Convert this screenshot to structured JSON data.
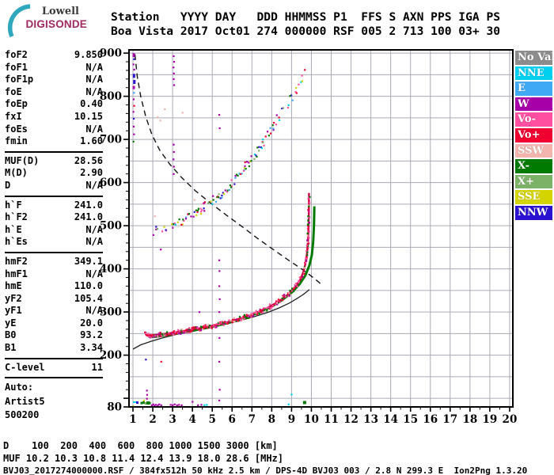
{
  "logo": {
    "line1": "Lowell",
    "line2": "DIGISONDE",
    "arc_color": "#2FA7BC",
    "brand_color": "#A02963"
  },
  "header": {
    "line1": "Station   YYYY DAY   DDD HHMMSS P1  FFS S AXN PPS IGA PS",
    "line2": "Boa Vista 2017 Oct01 274 000000 RSF 005 2 713 100 03+ 30"
  },
  "params_panel": {
    "groups": [
      {
        "rows": [
          [
            "foF2",
            "9.850"
          ],
          [
            "foF1",
            "N/A"
          ],
          [
            "foF1p",
            "N/A"
          ],
          [
            "foE",
            "N/A"
          ],
          [
            "foEp",
            "0.40"
          ],
          [
            "fxI",
            "10.15"
          ],
          [
            "foEs",
            "N/A"
          ],
          [
            "fmin",
            "1.60"
          ]
        ]
      },
      {
        "rows": [
          [
            "MUF(D)",
            "28.56"
          ],
          [
            "M(D)",
            "2.90"
          ],
          [
            "D",
            "N/A"
          ]
        ]
      },
      {
        "rows": [
          [
            "h`F",
            "241.0"
          ],
          [
            "h`F2",
            "241.0"
          ],
          [
            "h`E",
            "N/A"
          ],
          [
            "h`Es",
            "N/A"
          ]
        ]
      },
      {
        "rows": [
          [
            "hmF2",
            "349.1"
          ],
          [
            "hmF1",
            "N/A"
          ],
          [
            "hmE",
            "110.0"
          ],
          [
            "yF2",
            "105.4"
          ],
          [
            "yF1",
            "N/A"
          ],
          [
            "yE",
            "20.0"
          ],
          [
            "B0",
            "93.2"
          ],
          [
            "B1",
            "3.34"
          ]
        ]
      },
      {
        "rows": [
          [
            "C-level",
            "11"
          ]
        ]
      }
    ],
    "footer_lines": [
      "Auto:",
      "Artist5",
      "500200"
    ]
  },
  "legend": {
    "items": [
      {
        "label": "No Val",
        "color": "#8C8C8C"
      },
      {
        "label": "NNE",
        "color": "#00D0F0"
      },
      {
        "label": "E",
        "color": "#3FA9F5"
      },
      {
        "label": "W",
        "color": "#A800A8"
      },
      {
        "label": "Vo-",
        "color": "#FF4FA0"
      },
      {
        "label": "Vo+",
        "color": "#EF0030"
      },
      {
        "label": "SSW",
        "color": "#F2B4AD"
      },
      {
        "label": "X-",
        "color": "#007A00"
      },
      {
        "label": "X+",
        "color": "#7CB168"
      },
      {
        "label": "SSE",
        "color": "#D4D400"
      },
      {
        "label": "NNW",
        "color": "#2A12D0"
      }
    ]
  },
  "muf_table": {
    "d_label": "D",
    "d_values": [
      "100",
      "200",
      "400",
      "600",
      "800",
      "1000",
      "1500",
      "3000"
    ],
    "d_unit": "[km]",
    "muf_label": "MUF",
    "muf_values": [
      "10.2",
      "10.3",
      "10.8",
      "11.4",
      "12.4",
      "13.9",
      "18.0",
      "28.6"
    ],
    "muf_unit": "[MHz]"
  },
  "footer": {
    "file_info": "BVJ03_2017274000000.RSF / 384fx512h 50 kHz 2.5 km / DPS-4D BVJ03 003 / 2.8 N 299.3 E  Ion2Png 1.3.20"
  },
  "chart_data": {
    "type": "scatter",
    "x_axis": {
      "unit": "MHz",
      "min": 1,
      "max": 20,
      "ticks": [
        1,
        2,
        3,
        4,
        5,
        6,
        7,
        8,
        9,
        10,
        11,
        12,
        13,
        14,
        15,
        16,
        17,
        18,
        19,
        20
      ],
      "grid_step": 1,
      "minor_tick_step": 0.5
    },
    "y_axis": {
      "unit": "km",
      "min": 80,
      "max": 900,
      "tick_labels": [
        900,
        800,
        700,
        600,
        500,
        400,
        300,
        200,
        80
      ],
      "grid_step": 50,
      "minor_tick_step": 20
    },
    "grid": true,
    "grid_color": "#AAAAB6",
    "legend_position": "right",
    "series": [
      {
        "name": "muf-transmission-curve",
        "style": "dashed-line",
        "color": "#111111",
        "points": [
          [
            1.1,
            897
          ],
          [
            1.22,
            845
          ],
          [
            1.4,
            798
          ],
          [
            1.65,
            752
          ],
          [
            1.95,
            712
          ],
          [
            2.35,
            675
          ],
          [
            2.85,
            643
          ],
          [
            3.45,
            612
          ],
          [
            4.15,
            581
          ],
          [
            4.9,
            553
          ],
          [
            5.7,
            525
          ],
          [
            6.5,
            498
          ],
          [
            7.3,
            470
          ],
          [
            8.1,
            444
          ],
          [
            8.85,
            420
          ],
          [
            9.5,
            400
          ],
          [
            10.0,
            383
          ],
          [
            10.35,
            370
          ],
          [
            10.55,
            362
          ]
        ]
      },
      {
        "name": "electron-density-profile",
        "style": "solid-line",
        "color": "#222222",
        "points": [
          [
            1.0,
            214
          ],
          [
            1.4,
            224
          ],
          [
            1.9,
            232
          ],
          [
            2.5,
            240
          ],
          [
            3.2,
            248
          ],
          [
            4.0,
            255
          ],
          [
            4.8,
            263
          ],
          [
            5.6,
            271
          ],
          [
            6.4,
            280
          ],
          [
            7.1,
            289
          ],
          [
            7.8,
            299
          ],
          [
            8.4,
            310
          ],
          [
            8.9,
            321
          ],
          [
            9.3,
            332
          ],
          [
            9.6,
            341
          ],
          [
            9.8,
            348
          ],
          [
            9.9,
            352
          ]
        ]
      },
      {
        "name": "x-mode-trace",
        "style": "thick-line",
        "color": "#007A00",
        "points": [
          [
            1.78,
            243
          ],
          [
            2.2,
            243
          ],
          [
            2.8,
            247
          ],
          [
            3.4,
            252
          ],
          [
            4.0,
            257
          ],
          [
            4.7,
            263
          ],
          [
            5.4,
            270
          ],
          [
            6.1,
            279
          ],
          [
            6.8,
            289
          ],
          [
            7.4,
            300
          ],
          [
            8.0,
            313
          ],
          [
            8.5,
            327
          ],
          [
            9.0,
            345
          ],
          [
            9.4,
            364
          ],
          [
            9.7,
            385
          ],
          [
            9.9,
            408
          ],
          [
            10.02,
            432
          ],
          [
            10.09,
            462
          ],
          [
            10.13,
            500
          ],
          [
            10.15,
            545
          ]
        ]
      },
      {
        "name": "o-mode-trace",
        "style": "thick-line",
        "color": "#CA0045",
        "points": [
          [
            1.62,
            249
          ],
          [
            1.75,
            245
          ],
          [
            2.0,
            246
          ],
          [
            2.5,
            249
          ],
          [
            3.0,
            252
          ],
          [
            3.6,
            256
          ],
          [
            4.2,
            261
          ],
          [
            4.8,
            266
          ],
          [
            5.4,
            272
          ],
          [
            6.0,
            279
          ],
          [
            6.6,
            288
          ],
          [
            7.2,
            298
          ],
          [
            7.8,
            310
          ],
          [
            8.3,
            323
          ],
          [
            8.8,
            340
          ],
          [
            9.2,
            359
          ],
          [
            9.45,
            376
          ],
          [
            9.6,
            393
          ],
          [
            9.7,
            412
          ],
          [
            9.78,
            436
          ],
          [
            9.83,
            465
          ],
          [
            9.86,
            500
          ],
          [
            9.875,
            540
          ],
          [
            9.88,
            576
          ]
        ]
      },
      {
        "name": "second-hop-trace",
        "style": "speckle",
        "color": "mixed",
        "points": [
          [
            2.08,
            486
          ],
          [
            2.5,
            493
          ],
          [
            3.0,
            502
          ],
          [
            3.5,
            513
          ],
          [
            4.0,
            526
          ],
          [
            4.5,
            540
          ],
          [
            5.0,
            557
          ],
          [
            5.5,
            577
          ],
          [
            6.0,
            600
          ],
          [
            6.5,
            627
          ],
          [
            7.0,
            657
          ],
          [
            7.5,
            690
          ],
          [
            8.0,
            724
          ],
          [
            8.5,
            760
          ],
          [
            9.0,
            797
          ],
          [
            9.3,
            822
          ],
          [
            9.55,
            845
          ],
          [
            9.7,
            860
          ]
        ]
      }
    ],
    "noise_points": [
      [
        1.02,
        898,
        "#A800A8",
        3,
        5
      ],
      [
        1.05,
        886,
        "#2A12D0"
      ],
      [
        1.02,
        874,
        "#A800A8"
      ],
      [
        1.06,
        862,
        "#A800A8"
      ],
      [
        1.03,
        850,
        "#2A12D0",
        3,
        5
      ],
      [
        1.05,
        836,
        "#2A12D0",
        3,
        5
      ],
      [
        1.02,
        822,
        "#A800A8",
        3,
        4
      ],
      [
        1.05,
        808,
        "#3FA9F5"
      ],
      [
        1.03,
        793,
        "#A800A8"
      ],
      [
        1.06,
        778,
        "#EF0030"
      ],
      [
        1.02,
        764,
        "#A800A8"
      ],
      [
        1.04,
        748,
        "#2A12D0"
      ],
      [
        1.03,
        730,
        "#A800A8"
      ],
      [
        1.05,
        712,
        "#A800A8"
      ],
      [
        1.02,
        695,
        "#007A00"
      ],
      [
        3.05,
        893,
        "#A800A8"
      ],
      [
        3.07,
        880,
        "#A800A8"
      ],
      [
        3.04,
        867,
        "#A800A8"
      ],
      [
        3.06,
        853,
        "#A800A8"
      ],
      [
        3.05,
        840,
        "#A800A8"
      ],
      [
        3.07,
        826,
        "#A800A8"
      ],
      [
        3.05,
        688,
        "#A800A8"
      ],
      [
        3.06,
        671,
        "#A800A8"
      ],
      [
        3.04,
        654,
        "#A800A8"
      ],
      [
        3.06,
        637,
        "#A800A8"
      ],
      [
        3.05,
        620,
        "#A800A8"
      ],
      [
        5.35,
        757,
        "#A800A8"
      ],
      [
        5.37,
        726,
        "#A800A8"
      ],
      [
        5.35,
        420,
        "#A800A8"
      ],
      [
        5.36,
        395,
        "#A800A8"
      ],
      [
        5.35,
        360,
        "#A800A8"
      ],
      [
        5.37,
        330,
        "#A800A8"
      ],
      [
        5.35,
        300,
        "#A800A8"
      ],
      [
        5.36,
        240,
        "#A800A8"
      ],
      [
        5.35,
        185,
        "#A800A8"
      ],
      [
        5.37,
        120,
        "#A800A8"
      ],
      [
        5.35,
        95,
        "#A800A8"
      ],
      [
        2.25,
        752,
        "#F2B4AD"
      ],
      [
        2.38,
        744,
        "#F2B4AD"
      ],
      [
        2.6,
        770,
        "#F2B4AD"
      ],
      [
        3.5,
        762,
        "#F2B4AD"
      ],
      [
        4.1,
        560,
        "#F2B4AD"
      ],
      [
        2.1,
        522,
        "#F2B4AD"
      ],
      [
        7.55,
        700,
        "#00D0F0"
      ],
      [
        7.5,
        680,
        "#00D0F0"
      ],
      [
        1.65,
        190,
        "#2A12D0"
      ],
      [
        1.7,
        118,
        "#A800A8"
      ],
      [
        1.71,
        108,
        "#A800A8"
      ],
      [
        1.7,
        99,
        "#A800A8"
      ],
      [
        9.0,
        109,
        "#00D0F0"
      ],
      [
        9.62,
        92,
        "#007A00",
        4,
        4
      ],
      [
        8.85,
        86,
        "#00D0F0"
      ],
      [
        2.4,
        445,
        "#A800A8"
      ],
      [
        4.35,
        300,
        "#A800A8"
      ],
      [
        2.42,
        185,
        "#EF0030"
      ],
      [
        1.0,
        82,
        "#D4D400"
      ],
      [
        1.03,
        91,
        "#00D0F0",
        4,
        2
      ],
      [
        1.2,
        91,
        "#2A12D0",
        3,
        3
      ],
      [
        1.42,
        90,
        "#007A00",
        3,
        3
      ],
      [
        1.52,
        91,
        "#007A00",
        3,
        3
      ],
      [
        1.62,
        89,
        "#7CB168",
        4,
        3
      ],
      [
        1.72,
        91,
        "#007A00",
        4,
        4
      ],
      [
        1.82,
        90,
        "#007A00",
        3,
        3
      ],
      [
        1.55,
        95,
        "#D4D400"
      ],
      [
        1.95,
        84,
        "#A800A8"
      ],
      [
        2.02,
        86,
        "#A800A8"
      ],
      [
        2.08,
        83,
        "#A800A8"
      ],
      [
        2.15,
        85,
        "#A800A8"
      ],
      [
        2.25,
        84,
        "#A800A8"
      ],
      [
        2.32,
        86,
        "#A800A8"
      ],
      [
        2.42,
        84,
        "#A800A8"
      ],
      [
        2.9,
        85,
        "#A800A8"
      ],
      [
        3.0,
        84,
        "#A800A8"
      ],
      [
        3.1,
        86,
        "#A800A8"
      ],
      [
        3.22,
        84,
        "#A800A8"
      ],
      [
        3.32,
        85,
        "#A800A8"
      ],
      [
        3.45,
        84,
        "#A800A8"
      ],
      [
        4.0,
        92,
        "#A800A8"
      ],
      [
        4.28,
        84,
        "#A800A8"
      ],
      [
        4.45,
        85,
        "#A800A8"
      ],
      [
        4.6,
        84,
        "#00D0F0"
      ],
      [
        4.72,
        85,
        "#00D0F0"
      ]
    ]
  }
}
